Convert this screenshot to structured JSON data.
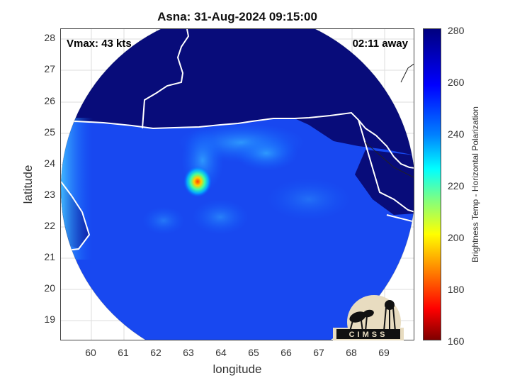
{
  "title": "Asna: 31-Aug-2024 09:15:00",
  "annotations": {
    "vmax": "Vmax: 43 kts",
    "away": "02:11 away"
  },
  "axes": {
    "xlabel": "longitude",
    "ylabel": "latitude",
    "xticks": [
      "60",
      "61",
      "62",
      "63",
      "64",
      "65",
      "66",
      "67",
      "68",
      "69"
    ],
    "yticks": [
      "28",
      "27",
      "26",
      "25",
      "24",
      "23",
      "22",
      "21",
      "20",
      "19"
    ],
    "xlim": [
      59.1,
      69.9
    ],
    "ylim": [
      18.4,
      28.4
    ]
  },
  "colorbar": {
    "label": "Brightness Temp - Horizontal Polarization",
    "ticks": [
      "280",
      "260",
      "240",
      "220",
      "200",
      "180",
      "160"
    ],
    "range": [
      160,
      280
    ]
  },
  "logo": {
    "text": "CIMSS"
  },
  "storm": {
    "center_lon": 63.2,
    "center_lat": 23.5
  }
}
